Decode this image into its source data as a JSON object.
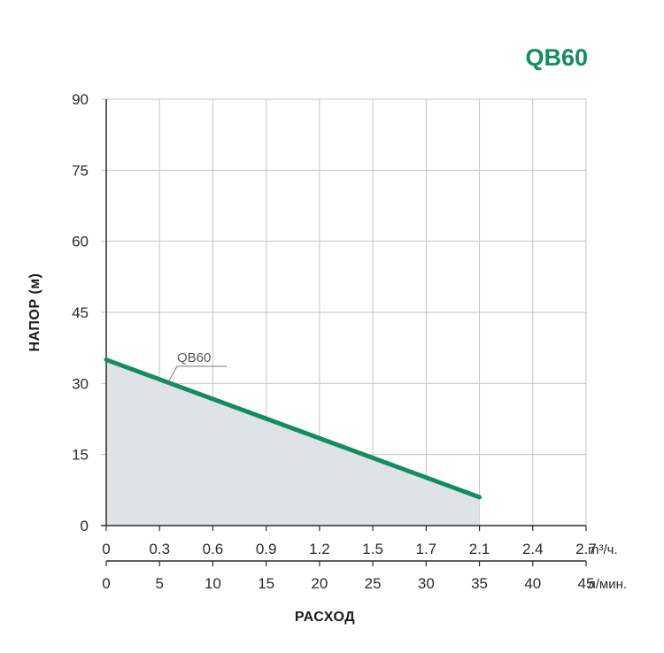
{
  "chart_data": {
    "type": "area",
    "title": "QB60",
    "xlabel": "РАСХОД",
    "ylabel": "НАПОР (м)",
    "ylim": [
      0,
      90
    ],
    "yticks": [
      "0",
      "15",
      "30",
      "45",
      "60",
      "75",
      "90"
    ],
    "x_axis_primary": {
      "unit": "m³/ч.",
      "ticks": [
        "0",
        "0.3",
        "0.6",
        "0.9",
        "1.2",
        "1.5",
        "1.7",
        "2.1",
        "2.4",
        "2.7"
      ]
    },
    "x_axis_secondary": {
      "unit": "л/мин.",
      "ticks": [
        "0",
        "5",
        "10",
        "15",
        "20",
        "25",
        "30",
        "35",
        "40",
        "45"
      ]
    },
    "xlim": [
      0,
      45
    ],
    "grid": true,
    "series": [
      {
        "name": "QB60",
        "x": [
          0,
          35
        ],
        "y": [
          35,
          6
        ]
      }
    ],
    "colors": {
      "line": "#148c62",
      "title": "#148c62",
      "fill": "#dfe3e6",
      "grid": "#c4c4c4",
      "axis": "#2b2b2b"
    }
  }
}
